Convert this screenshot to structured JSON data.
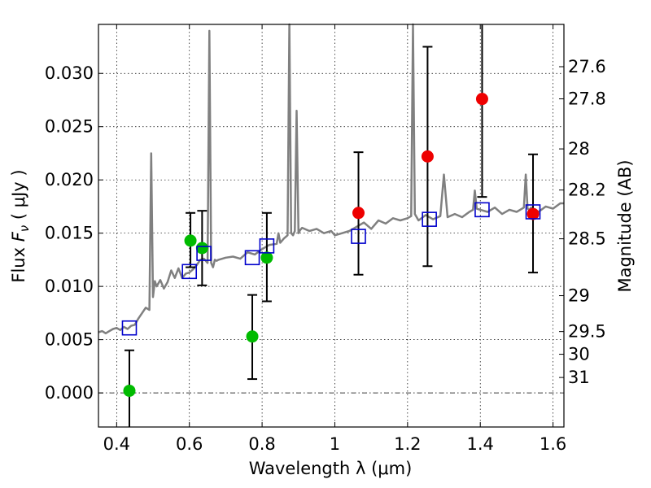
{
  "chart_data": {
    "type": "scatter",
    "xlabel": "Wavelength  λ (μm)",
    "ylabel": "Flux  F_ν  ( μJy )",
    "ylabel_parts": {
      "prefix": "Flux  ",
      "symbol": "F",
      "subscript": "ν",
      "suffix": "  ( μJy )"
    },
    "y2label": "Magnitude (AB)",
    "xlim": [
      0.35,
      1.63
    ],
    "ylim": [
      -0.0032,
      0.0346
    ],
    "grid": true,
    "xticks": [
      0.4,
      0.6,
      0.8,
      1.0,
      1.2,
      1.4,
      1.6
    ],
    "xtick_labels": [
      "0.4",
      "0.6",
      "0.8",
      "1",
      "1.2",
      "1.4",
      "1.6"
    ],
    "yticks": [
      0.0,
      0.005,
      0.01,
      0.015,
      0.02,
      0.025,
      0.03
    ],
    "ytick_labels": [
      "0.000",
      "0.005",
      "0.010",
      "0.015",
      "0.020",
      "0.025",
      "0.030"
    ],
    "y2ticks": [
      {
        "label": "27.6",
        "flux": 0.03063
      },
      {
        "label": "27.8",
        "flux": 0.02761
      },
      {
        "label": "28",
        "flux": 0.02291
      },
      {
        "label": "28.2",
        "flux": 0.01905
      },
      {
        "label": "28.5",
        "flux": 0.01447
      },
      {
        "label": "29",
        "flux": 0.00913
      },
      {
        "label": "29.5",
        "flux": 0.00576
      },
      {
        "label": "30",
        "flux": 0.00363
      },
      {
        "label": "31",
        "flux": 0.00145
      }
    ],
    "colors": {
      "template": "#808080",
      "green_points": "#00bb00",
      "red_points": "#ee0000",
      "model_squares": "#0000cc",
      "error_bars": "#000000",
      "zero_line": "#444444"
    },
    "series": [
      {
        "kind": "template",
        "x": [
          0.35,
          0.36,
          0.37,
          0.38,
          0.39,
          0.4,
          0.41,
          0.42,
          0.43,
          0.44,
          0.45,
          0.46,
          0.47,
          0.48,
          0.49,
          0.495,
          0.5,
          0.505,
          0.51,
          0.52,
          0.53,
          0.54,
          0.55,
          0.56,
          0.57,
          0.58,
          0.59,
          0.6,
          0.61,
          0.62,
          0.63,
          0.64,
          0.65,
          0.655,
          0.66,
          0.665,
          0.67,
          0.675,
          0.68,
          0.7,
          0.72,
          0.74,
          0.76,
          0.78,
          0.8,
          0.82,
          0.84,
          0.845,
          0.85,
          0.86,
          0.87,
          0.875,
          0.88,
          0.885,
          0.89,
          0.895,
          0.9,
          0.905,
          0.91,
          0.93,
          0.95,
          0.97,
          0.99,
          1.0,
          1.02,
          1.04,
          1.06,
          1.08,
          1.1,
          1.12,
          1.14,
          1.16,
          1.18,
          1.2,
          1.21,
          1.215,
          1.22,
          1.23,
          1.25,
          1.27,
          1.29,
          1.3,
          1.31,
          1.33,
          1.35,
          1.37,
          1.38,
          1.385,
          1.39,
          1.4,
          1.42,
          1.44,
          1.46,
          1.48,
          1.5,
          1.52,
          1.525,
          1.53,
          1.535,
          1.54,
          1.56,
          1.58,
          1.6,
          1.62,
          1.63
        ],
        "y": [
          0.0057,
          0.0058,
          0.0056,
          0.0058,
          0.006,
          0.0061,
          0.0059,
          0.0062,
          0.006,
          0.0063,
          0.0064,
          0.007,
          0.0075,
          0.008,
          0.0078,
          0.0225,
          0.009,
          0.0105,
          0.01,
          0.0106,
          0.0098,
          0.0104,
          0.0115,
          0.0108,
          0.0117,
          0.0108,
          0.0112,
          0.0113,
          0.0116,
          0.012,
          0.0125,
          0.0126,
          0.0122,
          0.034,
          0.0122,
          0.0118,
          0.0125,
          0.0124,
          0.0125,
          0.0127,
          0.0128,
          0.0126,
          0.0132,
          0.013,
          0.0135,
          0.0139,
          0.014,
          0.015,
          0.0141,
          0.0145,
          0.0148,
          0.035,
          0.015,
          0.0148,
          0.0152,
          0.0265,
          0.015,
          0.0153,
          0.0155,
          0.0152,
          0.0154,
          0.015,
          0.0152,
          0.0148,
          0.015,
          0.0152,
          0.0156,
          0.016,
          0.0154,
          0.0162,
          0.0159,
          0.0164,
          0.0162,
          0.0164,
          0.0166,
          0.035,
          0.0168,
          0.0162,
          0.0167,
          0.0163,
          0.0166,
          0.0205,
          0.0165,
          0.0168,
          0.0165,
          0.017,
          0.0172,
          0.019,
          0.0173,
          0.0172,
          0.017,
          0.0174,
          0.0168,
          0.0172,
          0.017,
          0.0174,
          0.0205,
          0.0173,
          0.0172,
          0.0174,
          0.017,
          0.0175,
          0.0173,
          0.0178,
          0.0178
        ]
      },
      {
        "kind": "green-points",
        "points": [
          {
            "x": 0.435,
            "y": 0.0002,
            "err_low": 0.004,
            "err_high": 0.0038
          },
          {
            "x": 0.603,
            "y": 0.0143,
            "err_low": 0.0025,
            "err_high": 0.0026
          },
          {
            "x": 0.635,
            "y": 0.0136,
            "err_low": 0.0035,
            "err_high": 0.0035
          },
          {
            "x": 0.773,
            "y": 0.0053,
            "err_low": 0.004,
            "err_high": 0.0039
          },
          {
            "x": 0.813,
            "y": 0.0127,
            "err_low": 0.0041,
            "err_high": 0.0042
          }
        ]
      },
      {
        "kind": "red-points",
        "points": [
          {
            "x": 1.065,
            "y": 0.0169,
            "err_low": 0.0058,
            "err_high": 0.0057
          },
          {
            "x": 1.255,
            "y": 0.0222,
            "err_low": 0.0103,
            "err_high": 0.0103
          },
          {
            "x": 1.405,
            "y": 0.0276,
            "err_low": 0.0092,
            "err_high": 0.01
          },
          {
            "x": 1.545,
            "y": 0.0168,
            "err_low": 0.0055,
            "err_high": 0.0056
          }
        ]
      },
      {
        "kind": "model-squares",
        "points": [
          {
            "x": 0.435,
            "y": 0.0061
          },
          {
            "x": 0.6,
            "y": 0.0114
          },
          {
            "x": 0.64,
            "y": 0.0131
          },
          {
            "x": 0.773,
            "y": 0.0127
          },
          {
            "x": 0.813,
            "y": 0.0138
          },
          {
            "x": 1.065,
            "y": 0.0147
          },
          {
            "x": 1.26,
            "y": 0.0163
          },
          {
            "x": 1.405,
            "y": 0.0172
          },
          {
            "x": 1.545,
            "y": 0.017
          }
        ]
      }
    ]
  }
}
